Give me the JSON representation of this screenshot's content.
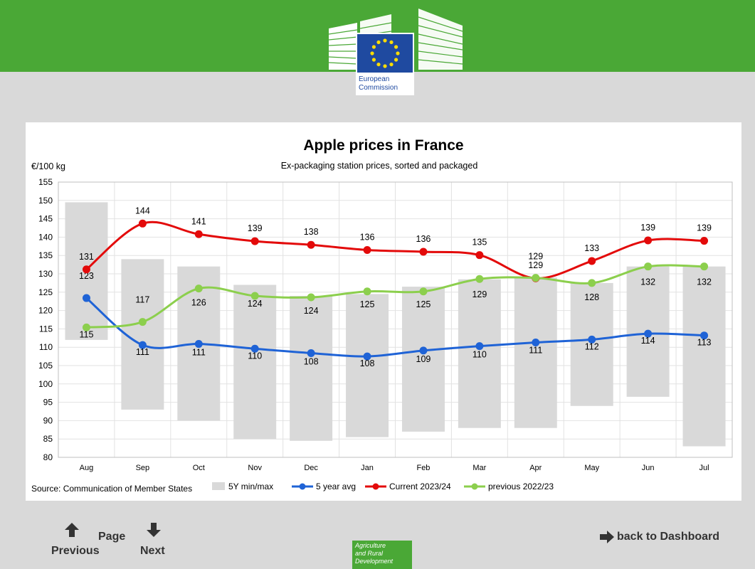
{
  "header": {
    "logo_text_line1": "European",
    "logo_text_line2": "Commission"
  },
  "chart_data": {
    "type": "line",
    "title": "Apple prices in France",
    "subtitle": "Ex-packaging station prices, sorted and packaged",
    "ylabel": "€/100 kg",
    "ylim": [
      80,
      155
    ],
    "yticks": [
      80,
      85,
      90,
      95,
      100,
      105,
      110,
      115,
      120,
      125,
      130,
      135,
      140,
      145,
      150,
      155
    ],
    "grid": true,
    "legend_position": "bottom",
    "categories": [
      "Aug",
      "Sep",
      "Oct",
      "Nov",
      "Dec",
      "Jan",
      "Feb",
      "Mar",
      "Apr",
      "May",
      "Jun",
      "Jul"
    ],
    "range_series": {
      "name": "5Y min/max",
      "color": "#d9d9d9",
      "min": [
        112,
        93,
        90,
        85,
        84.5,
        85.5,
        87,
        88,
        88,
        94,
        96.5,
        83
      ],
      "max": [
        149.5,
        134,
        132,
        127,
        124,
        124.5,
        126.5,
        128.5,
        129,
        127.5,
        132,
        132
      ]
    },
    "series": [
      {
        "name": "5 year avg",
        "color": "#1f63d6",
        "values": [
          123.4,
          110.6,
          110.9,
          109.6,
          108.4,
          107.5,
          109.1,
          110.3,
          111.3,
          112.1,
          113.7,
          113.2
        ],
        "labels": [
          "123",
          "111",
          "111",
          "110",
          "108",
          "108",
          "109",
          "110",
          "111",
          "112",
          "114",
          "113"
        ]
      },
      {
        "name": "Current 2023/24",
        "color": "#e30a0a",
        "values": [
          131.2,
          143.7,
          140.8,
          138.9,
          137.9,
          136.5,
          136.0,
          135.1,
          128.8,
          133.5,
          139.1,
          139.0
        ],
        "labels": [
          "131",
          "144",
          "141",
          "139",
          "138",
          "136",
          "136",
          "135",
          "129",
          "133",
          "139",
          "139"
        ]
      },
      {
        "name": "previous 2022/23",
        "color": "#8ccf4d",
        "values": [
          115.4,
          116.9,
          126.0,
          124.0,
          123.6,
          125.2,
          125.2,
          128.6,
          128.9,
          127.5,
          132.0,
          132.0
        ],
        "labels": [
          "115",
          "117",
          "126",
          "124",
          "124",
          "125",
          "125",
          "129",
          "129",
          "128",
          "132",
          "132"
        ]
      }
    ],
    "source": "Source: Communication of Member States"
  },
  "nav": {
    "page_label": "Page",
    "previous_label": "Previous",
    "next_label": "Next",
    "back_label": "back to Dashboard"
  },
  "footer": {
    "line1": "Agriculture",
    "line2": "and Rural",
    "line3": "Development"
  },
  "colors": {
    "brand_green": "#4aa836",
    "eu_blue": "#1f4aa0",
    "eu_star": "#ffdd00"
  }
}
